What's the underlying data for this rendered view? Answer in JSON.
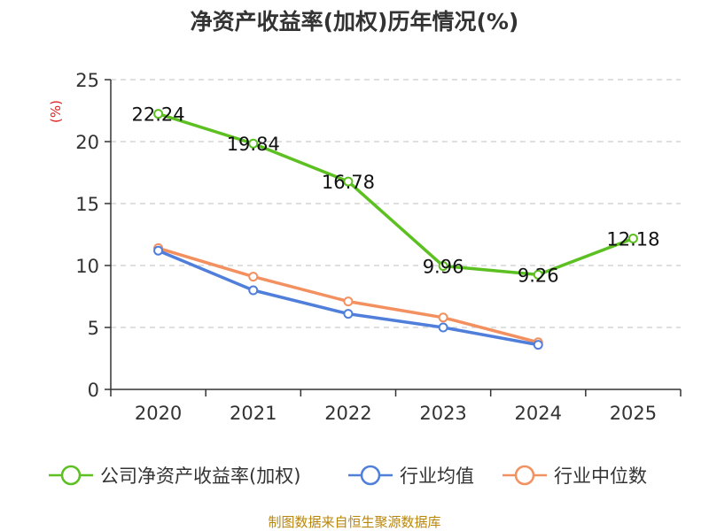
{
  "chart_data": {
    "type": "line",
    "title": "净资产收益率(加权)历年情况(%)",
    "ylabel": "(%)",
    "xlabel": "",
    "categories": [
      "2020",
      "2021",
      "2022",
      "2023",
      "2024",
      "2025"
    ],
    "ylim": [
      0,
      25
    ],
    "yticks": [
      0,
      5,
      10,
      15,
      20,
      25
    ],
    "grid": true,
    "legend_position": "bottom",
    "series": [
      {
        "name": "公司净资产收益率(加权)",
        "color": "#5cc021",
        "values": [
          22.24,
          19.84,
          16.78,
          9.96,
          9.26,
          12.18
        ],
        "labels": [
          "22.24",
          "19.84",
          "16.78",
          "9.96",
          "9.26",
          "12.18"
        ]
      },
      {
        "name": "行业均值",
        "color": "#4f7fdb",
        "values": [
          11.2,
          8.0,
          6.1,
          5.0,
          3.6,
          null
        ]
      },
      {
        "name": "行业中位数",
        "color": "#f39060",
        "values": [
          11.4,
          9.1,
          7.1,
          5.8,
          3.8,
          null
        ]
      }
    ],
    "source": "制图数据来自恒生聚源数据库"
  }
}
